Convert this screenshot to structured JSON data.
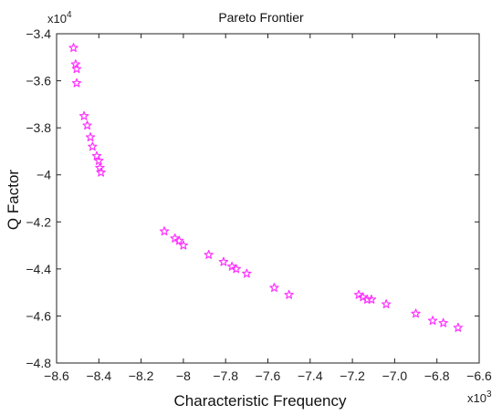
{
  "chart_data": {
    "type": "scatter",
    "title": "Pareto Frontier",
    "xlabel": "Characteristic Frequency",
    "ylabel": "Q Factor",
    "x_multiplier": "x10",
    "x_multiplier_exp": "3",
    "y_multiplier": "x10",
    "y_multiplier_exp": "4",
    "xlim": [
      -8.6,
      -6.6
    ],
    "ylim": [
      -4.8,
      -3.4
    ],
    "xticks": [
      -8.6,
      -8.4,
      -8.2,
      -8,
      -7.8,
      -7.6,
      -7.4,
      -7.2,
      -7.0,
      -6.8,
      -6.6
    ],
    "xtick_labels": [
      "−8.6",
      "−8.4",
      "−8.2",
      "−8",
      "−7.8",
      "−7.6",
      "−7.4",
      "−7.2",
      "−7.0",
      "−6.8",
      "−6.6"
    ],
    "yticks": [
      -3.4,
      -3.6,
      -3.8,
      -4,
      -4.2,
      -4.4,
      -4.6,
      -4.8
    ],
    "ytick_labels": [
      "−3.4",
      "−3.6",
      "−3.8",
      "−4",
      "−4.2",
      "−4.4",
      "−4.6",
      "−4.8"
    ],
    "grid": false,
    "marker": "pentagram",
    "colors": {
      "marker": "#ff33ff",
      "axis": "#222222"
    },
    "x": [
      -8.52,
      -8.51,
      -8.505,
      -8.505,
      -8.47,
      -8.455,
      -8.44,
      -8.43,
      -8.41,
      -8.4,
      -8.395,
      -8.39,
      -8.09,
      -8.04,
      -8.02,
      -8.0,
      -7.88,
      -7.81,
      -7.77,
      -7.75,
      -7.7,
      -7.57,
      -7.5,
      -7.17,
      -7.15,
      -7.13,
      -7.11,
      -7.04,
      -6.9,
      -6.82,
      -6.77,
      -6.7
    ],
    "y": [
      -3.46,
      -3.53,
      -3.55,
      -3.61,
      -3.75,
      -3.79,
      -3.84,
      -3.88,
      -3.92,
      -3.94,
      -3.97,
      -3.99,
      -4.24,
      -4.27,
      -4.28,
      -4.3,
      -4.34,
      -4.37,
      -4.39,
      -4.4,
      -4.42,
      -4.48,
      -4.51,
      -4.51,
      -4.52,
      -4.53,
      -4.53,
      -4.55,
      -4.59,
      -4.62,
      -4.63,
      -4.65
    ]
  }
}
